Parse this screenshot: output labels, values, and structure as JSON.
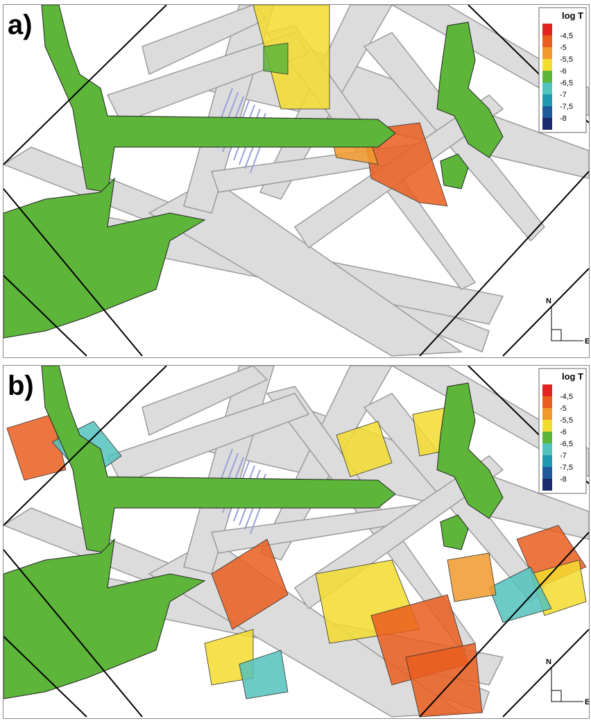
{
  "panels": [
    {
      "label": "a)",
      "legend": {
        "title": "log T",
        "labels": [
          "-4,5",
          "-5",
          "-5,5",
          "-6",
          "-6,5",
          "-7",
          "-7,5",
          "-8"
        ],
        "colors": [
          "#e3231f",
          "#ea5d1e",
          "#f19a2c",
          "#f2dc2e",
          "#5db53a",
          "#52c2bd",
          "#1f98b0",
          "#1e5a9c",
          "#1b2a6b"
        ]
      },
      "compass": {
        "north": "N",
        "east": "E"
      }
    },
    {
      "label": "b)",
      "legend": {
        "title": "log T",
        "labels": [
          "-4,5",
          "-5",
          "-5,5",
          "-6",
          "-6,5",
          "-7",
          "-7,5",
          "-8"
        ],
        "colors": [
          "#e3231f",
          "#ea5d1e",
          "#f19a2c",
          "#f2dc2e",
          "#5db53a",
          "#52c2bd",
          "#1f98b0",
          "#1e5a9c",
          "#1b2a6b"
        ]
      },
      "compass": {
        "north": "N",
        "east": "E"
      }
    }
  ]
}
